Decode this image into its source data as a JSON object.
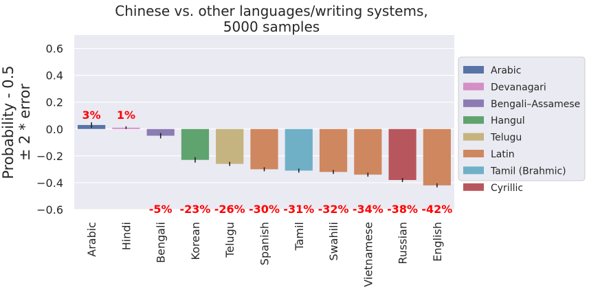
{
  "chart_data": {
    "type": "bar",
    "title": [
      "Chinese vs. other languages/writing systems,",
      "5000 samples"
    ],
    "ylabel": [
      "Probability - 0.5",
      "± 2 * error"
    ],
    "xlabel": "",
    "ylim": [
      -0.6,
      0.7
    ],
    "yticks": [
      0.6,
      0.4,
      0.2,
      0.0,
      -0.2,
      -0.4,
      -0.6
    ],
    "ytick_labels": [
      "0.6",
      "0.4",
      "0.2",
      "0.0",
      "−0.2",
      "−0.4",
      "−0.6"
    ],
    "grid": true,
    "legend_position": "right",
    "categories": [
      "Arabic",
      "Hindi",
      "Bengali",
      "Korean",
      "Telugu",
      "Spanish",
      "Tamil",
      "Swahili",
      "Vietnamese",
      "Russian",
      "English"
    ],
    "values": [
      0.03,
      0.01,
      -0.05,
      -0.23,
      -0.26,
      -0.3,
      -0.31,
      -0.32,
      -0.34,
      -0.38,
      -0.42
    ],
    "errors": [
      0.02,
      0.01,
      0.02,
      0.02,
      0.015,
      0.015,
      0.015,
      0.015,
      0.015,
      0.015,
      0.015
    ],
    "bar_labels": [
      "3%",
      "1%",
      "-5%",
      "-23%",
      "-26%",
      "-30%",
      "-31%",
      "-32%",
      "-34%",
      "-38%",
      "-42%"
    ],
    "writing_systems": [
      "Arabic",
      "Devanagari",
      "Bengali–Assamese",
      "Hangul",
      "Telugu",
      "Latin",
      "Tamil (Brahmic)",
      "Latin",
      "Latin",
      "Cyrillic",
      "Latin"
    ],
    "legend": [
      {
        "label": "Arabic",
        "color": "#5874a6"
      },
      {
        "label": "Devanagari",
        "color": "#d48fc6"
      },
      {
        "label": "Bengali–Assamese",
        "color": "#8c7cb4"
      },
      {
        "label": "Hangul",
        "color": "#5fa36e"
      },
      {
        "label": "Telugu",
        "color": "#c5b480"
      },
      {
        "label": "Latin",
        "color": "#cf8760"
      },
      {
        "label": "Tamil (Brahmic)",
        "color": "#6fb0c7"
      },
      {
        "label": "Cyrillic",
        "color": "#b8565e"
      }
    ],
    "colors": {
      "plot_background": "#eaeaf2",
      "grid": "#ffffff",
      "label_text": "#ff0000",
      "error_bar": "#1a1a1a"
    }
  }
}
